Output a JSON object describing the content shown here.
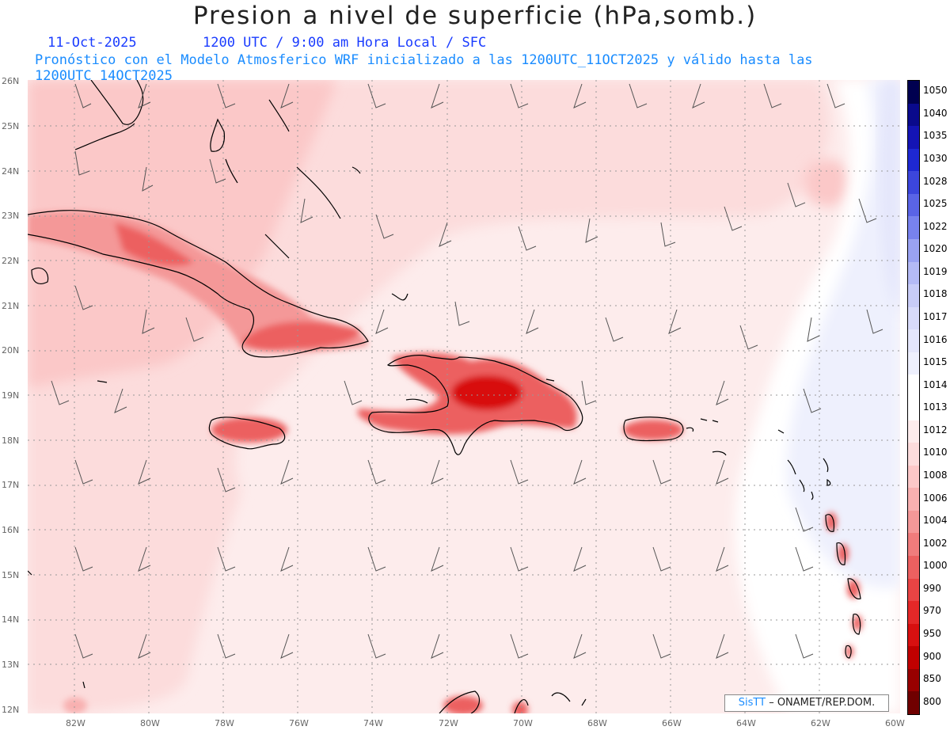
{
  "title": "Presion a nivel de superficie (hPa,somb.)",
  "header": {
    "date": "11-Oct-2025",
    "time_info": "1200 UTC / 9:00 am Hora Local / SFC",
    "forecast_info": "Pronóstico con el Modelo Atmosferico WRF inicializado a las 1200UTC_11OCT2025 y válido hasta las  1200UTC_14OCT2025"
  },
  "map": {
    "lat_labels": [
      "26N",
      "25N",
      "24N",
      "23N",
      "22N",
      "21N",
      "20N",
      "19N",
      "18N",
      "17N",
      "16N",
      "15N",
      "14N",
      "13N",
      "12N"
    ],
    "lon_labels": [
      "82W",
      "80W",
      "78W",
      "76W",
      "74W",
      "72W",
      "70W",
      "68W",
      "66W",
      "64W",
      "62W",
      "60W"
    ],
    "lat_range": [
      12,
      26
    ],
    "lon_range": [
      -83.2,
      -59.8
    ],
    "grid": true,
    "wind_barbs": true
  },
  "colorbar": {
    "labels": [
      "1050",
      "1040",
      "1035",
      "1030",
      "1028",
      "1025",
      "1022",
      "1020",
      "1019",
      "1018",
      "1017",
      "1016",
      "1015",
      "1014",
      "1013",
      "1012",
      "1010",
      "1008",
      "1006",
      "1004",
      "1002",
      "1000",
      "990",
      "970",
      "950",
      "900",
      "850",
      "800"
    ],
    "colors": [
      "#000050",
      "#0a0a8c",
      "#1414b4",
      "#1e28d2",
      "#3c46dc",
      "#5a64e6",
      "#7882ee",
      "#9aa2f2",
      "#b4baf5",
      "#c8ccf7",
      "#d8dbfa",
      "#e4e6fb",
      "#eef0fd",
      "#ffffff",
      "#ffffff",
      "#fdecec",
      "#fcdcdc",
      "#fcc8c8",
      "#f8b0b0",
      "#f49898",
      "#f07c7c",
      "#ec6060",
      "#e84444",
      "#e42828",
      "#d81010",
      "#c00000",
      "#980000",
      "#700000"
    ]
  },
  "credit": {
    "logo": "SisTT",
    "text": " – ONAMET/REP.DOM."
  }
}
